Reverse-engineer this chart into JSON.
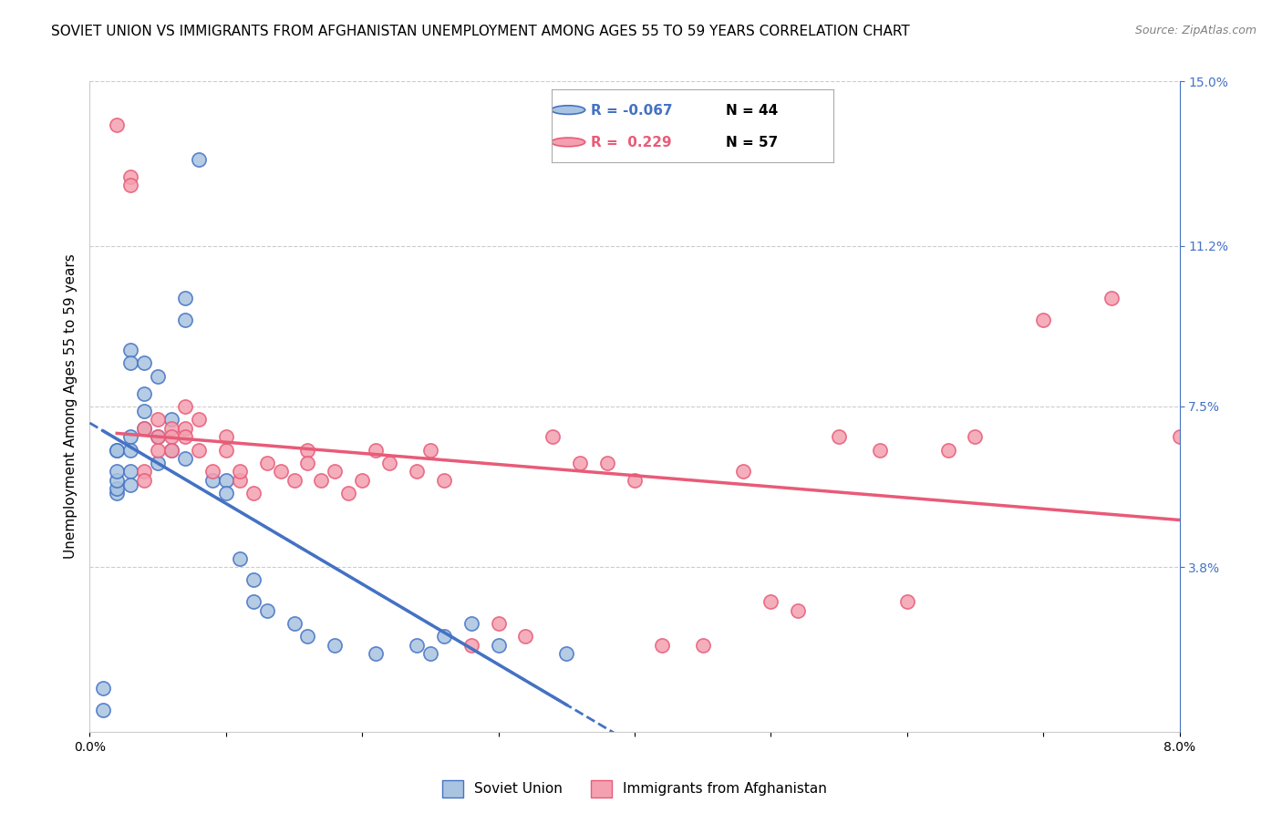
{
  "title": "SOVIET UNION VS IMMIGRANTS FROM AFGHANISTAN UNEMPLOYMENT AMONG AGES 55 TO 59 YEARS CORRELATION CHART",
  "source": "Source: ZipAtlas.com",
  "xlabel": "",
  "ylabel": "Unemployment Among Ages 55 to 59 years",
  "xlim": [
    0.0,
    0.08
  ],
  "ylim": [
    0.0,
    0.15
  ],
  "xticks": [
    0.0,
    0.01,
    0.02,
    0.03,
    0.04,
    0.05,
    0.06,
    0.07,
    0.08
  ],
  "xticklabels": [
    "0.0%",
    "",
    "",
    "",
    "",
    "",
    "",
    "",
    "8.0%"
  ],
  "ytick_positions": [
    0.038,
    0.075,
    0.112,
    0.15
  ],
  "ytick_labels": [
    "3.8%",
    "7.5%",
    "11.2%",
    "15.0%"
  ],
  "legend_R_blue": "-0.067",
  "legend_N_blue": "44",
  "legend_R_pink": "0.229",
  "legend_N_pink": "57",
  "legend_label_blue": "Soviet Union",
  "legend_label_pink": "Immigrants from Afghanistan",
  "blue_color": "#a8c4e0",
  "pink_color": "#f4a0b0",
  "blue_line_color": "#4472c4",
  "pink_line_color": "#e85b78",
  "soviet_x": [
    0.001,
    0.001,
    0.002,
    0.002,
    0.002,
    0.002,
    0.002,
    0.002,
    0.003,
    0.003,
    0.003,
    0.003,
    0.003,
    0.003,
    0.004,
    0.004,
    0.004,
    0.004,
    0.005,
    0.005,
    0.005,
    0.006,
    0.006,
    0.007,
    0.007,
    0.007,
    0.008,
    0.009,
    0.01,
    0.01,
    0.011,
    0.012,
    0.012,
    0.013,
    0.015,
    0.016,
    0.018,
    0.021,
    0.024,
    0.025,
    0.026,
    0.028,
    0.03,
    0.035
  ],
  "soviet_y": [
    0.005,
    0.01,
    0.065,
    0.065,
    0.055,
    0.056,
    0.058,
    0.06,
    0.088,
    0.085,
    0.068,
    0.065,
    0.06,
    0.057,
    0.085,
    0.078,
    0.074,
    0.07,
    0.082,
    0.068,
    0.062,
    0.072,
    0.065,
    0.1,
    0.095,
    0.063,
    0.132,
    0.058,
    0.058,
    0.055,
    0.04,
    0.035,
    0.03,
    0.028,
    0.025,
    0.022,
    0.02,
    0.018,
    0.02,
    0.018,
    0.022,
    0.025,
    0.02,
    0.018
  ],
  "afghan_x": [
    0.002,
    0.003,
    0.003,
    0.004,
    0.004,
    0.004,
    0.005,
    0.005,
    0.005,
    0.006,
    0.006,
    0.006,
    0.007,
    0.007,
    0.007,
    0.008,
    0.008,
    0.009,
    0.01,
    0.01,
    0.011,
    0.011,
    0.012,
    0.013,
    0.014,
    0.015,
    0.016,
    0.016,
    0.017,
    0.018,
    0.019,
    0.02,
    0.021,
    0.022,
    0.024,
    0.025,
    0.026,
    0.028,
    0.03,
    0.032,
    0.034,
    0.036,
    0.038,
    0.04,
    0.042,
    0.045,
    0.048,
    0.05,
    0.052,
    0.055,
    0.058,
    0.06,
    0.063,
    0.065,
    0.07,
    0.075,
    0.08
  ],
  "afghan_y": [
    0.14,
    0.128,
    0.126,
    0.06,
    0.058,
    0.07,
    0.065,
    0.068,
    0.072,
    0.07,
    0.068,
    0.065,
    0.075,
    0.07,
    0.068,
    0.072,
    0.065,
    0.06,
    0.065,
    0.068,
    0.058,
    0.06,
    0.055,
    0.062,
    0.06,
    0.058,
    0.065,
    0.062,
    0.058,
    0.06,
    0.055,
    0.058,
    0.065,
    0.062,
    0.06,
    0.065,
    0.058,
    0.02,
    0.025,
    0.022,
    0.068,
    0.062,
    0.062,
    0.058,
    0.02,
    0.02,
    0.06,
    0.03,
    0.028,
    0.068,
    0.065,
    0.03,
    0.065,
    0.068,
    0.095,
    0.1,
    0.068
  ],
  "background_color": "#ffffff",
  "grid_color": "#cccccc",
  "title_fontsize": 11,
  "axis_label_fontsize": 11,
  "tick_fontsize": 10
}
